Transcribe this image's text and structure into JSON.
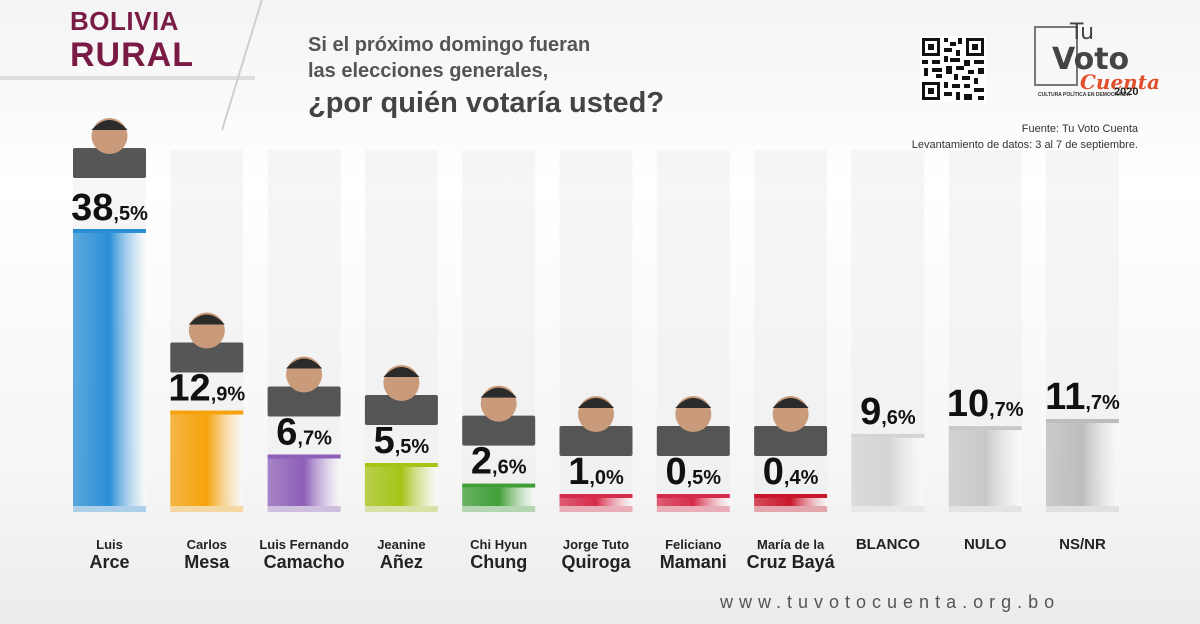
{
  "header": {
    "region_line1": "BOLIVIA",
    "region_line2": "RURAL",
    "question_line1": "Si el próximo domingo fueran",
    "question_line2": "las elecciones generales,",
    "question_line3": "¿por quién votaría usted?"
  },
  "logo": {
    "line1": "Tu",
    "line2": "Voto",
    "line3": "Cuenta",
    "year": "2020",
    "subtitle": "CULTURA POLÍTICA EN DEMOCRACIA"
  },
  "source": {
    "line1": "Fuente: Tu Voto Cuenta",
    "line2": "Levantamiento de datos: 3 al 7 de septiembre."
  },
  "footer": {
    "url": "www.tuvotocuenta.org.bo"
  },
  "chart_data": {
    "type": "bar",
    "categories": [
      "Luis Arce",
      "Carlos Mesa",
      "Luis Fernando Camacho",
      "Jeanine Añez",
      "Chi Hyun Chung",
      "Jorge Tuto Quiroga",
      "Feliciano Mamani",
      "María de la Cruz Bayá",
      "BLANCO",
      "NULO",
      "NS/NR"
    ],
    "label_lines": [
      [
        "Luis",
        "Arce"
      ],
      [
        "Carlos",
        "Mesa"
      ],
      [
        "Luis Fernando",
        "Camacho"
      ],
      [
        "Jeanine",
        "Añez"
      ],
      [
        "Chi Hyun",
        "Chung"
      ],
      [
        "Jorge Tuto",
        "Quiroga"
      ],
      [
        "Feliciano",
        "Mamani"
      ],
      [
        "María de la",
        "Cruz Bayá"
      ],
      [
        "",
        "BLANCO"
      ],
      [
        "",
        "NULO"
      ],
      [
        "",
        "NS/NR"
      ]
    ],
    "values": [
      38.5,
      12.9,
      6.7,
      5.5,
      2.6,
      1.0,
      0.5,
      0.4,
      9.6,
      10.7,
      11.7
    ],
    "value_labels": [
      [
        "38",
        ",5%"
      ],
      [
        "12",
        ",9%"
      ],
      [
        "6",
        ",7%"
      ],
      [
        "5",
        ",5%"
      ],
      [
        "2",
        ",6%"
      ],
      [
        "1",
        ",0%"
      ],
      [
        "0",
        ",5%"
      ],
      [
        "0",
        ",4%"
      ],
      [
        "9",
        ",6%"
      ],
      [
        "10",
        ",7%"
      ],
      [
        "11",
        ",7%"
      ]
    ],
    "colors": [
      "#2a8fd6",
      "#f6a20c",
      "#8d5fb8",
      "#a5c417",
      "#3f9e36",
      "#d62b4a",
      "#d62b4a",
      "#c9172b",
      "#d4d4d4",
      "#c8c8c8",
      "#bdbdbd"
    ],
    "ylim": [
      0,
      40
    ]
  }
}
